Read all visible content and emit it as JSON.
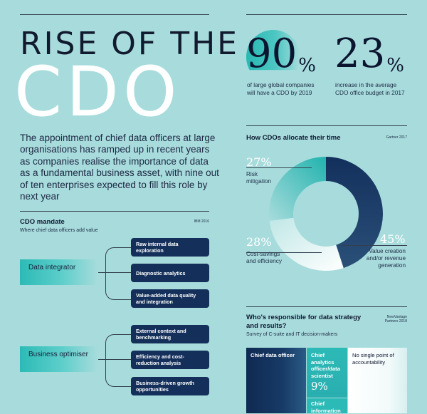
{
  "header": {
    "title_line1": "RISE OF THE",
    "title_line2": "CDO",
    "intro": "The appointment of chief data officers at large organisations has ramped up in recent years as companies realise the importance of data as a fundamental business asset, with nine out of ten enterprises expected to fill this role by next year"
  },
  "stats": [
    {
      "number": "90",
      "unit": "%",
      "desc": "of large global companies will have a CDO by 2019"
    },
    {
      "number": "23",
      "unit": "%",
      "desc": "increase in the average CDO office budget in 2017"
    }
  ],
  "mandate": {
    "title": "CDO mandate",
    "subtitle": "Where chief data officers add value",
    "source": "IBM 2016",
    "groups": [
      {
        "category": "Data integrator",
        "items": [
          "Raw internal data exploration",
          "Diagnostic analytics",
          "Value-added data quality and integration"
        ]
      },
      {
        "category": "Business optimiser",
        "items": [
          "External context and benchmarking",
          "Efficiency and cost-reduction analysis",
          "Business-driven growth opportunities"
        ]
      }
    ]
  },
  "colors": {
    "background": "#a8dcdc",
    "navy": "#14305a",
    "teal": "#2cbab6",
    "white": "#ffffff"
  },
  "chart_data": [
    {
      "type": "pie",
      "title": "How CDOs allocate their time",
      "source": "Gartner 2017",
      "categories": [
        "Risk mitigation",
        "Value creation and/or revenue generation",
        "Cost-savings and efficiency"
      ],
      "values": [
        27,
        45,
        28
      ],
      "value_labels": [
        "27%",
        "45%",
        "28%"
      ],
      "colors": [
        "#2cbab6",
        "#14305a",
        "#ffffff"
      ]
    },
    {
      "type": "table",
      "title": "Who's responsible for data strategy and results?",
      "subtitle": "Survey of C-suite and IT decision-makers",
      "source": "NewVantage Partners 2018",
      "categories": [
        "Chief data officer",
        "Chief analytics officer/data scientist",
        "No single point of accountability",
        "Chief information"
      ],
      "value_labels": [
        "",
        "9%",
        "",
        ""
      ]
    }
  ]
}
